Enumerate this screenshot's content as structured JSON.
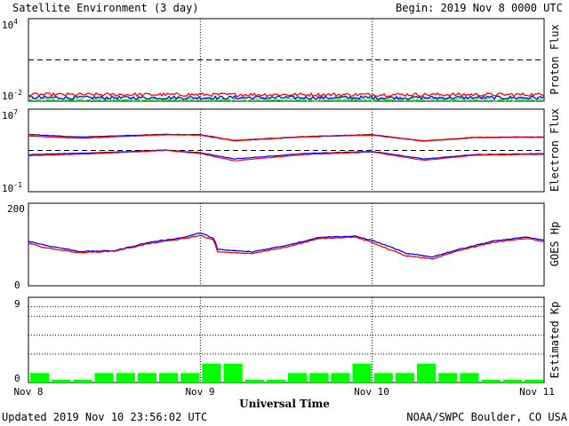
{
  "header": {
    "title": "Satellite Environment (3 day)",
    "begin": "Begin:  2019 Nov 8 0000 UTC"
  },
  "footer": {
    "updated": "Updated 2019 Nov 10 23:56:02 UTC",
    "credit": "NOAA/SWPC Boulder, CO USA"
  },
  "x_axis": {
    "label": "Universal Time",
    "ticks": [
      "Nov 8",
      "Nov 9",
      "Nov 10",
      "Nov 11"
    ]
  },
  "colors": {
    "red": "#ff0000",
    "blue": "#0000ff",
    "green": "#00ff00",
    "orange": "#ff9900",
    "black": "#000000"
  },
  "chart_data": [
    {
      "type": "line",
      "title": "",
      "ylabel": "Proton Flux",
      "yscale": "log",
      "ylim": [
        0.01,
        10000
      ],
      "yticks": [
        {
          "base": "10",
          "exp": "4"
        },
        {
          "base": "10",
          "exp": "-2"
        }
      ],
      "threshold": 10,
      "x_days": [
        0,
        3
      ],
      "series": [
        {
          "color": "red",
          "level": 0.03,
          "noise": 0.12
        },
        {
          "color": "blue",
          "level": 0.018,
          "noise": 0.12
        },
        {
          "color": "green",
          "level": 0.013,
          "noise": 0.12
        }
      ]
    },
    {
      "type": "line",
      "title": "",
      "ylabel": "Electron Flux",
      "yscale": "log",
      "ylim": [
        0.1,
        10000000
      ],
      "yticks": [
        {
          "base": "10",
          "exp": "7"
        },
        {
          "base": "10",
          "exp": "-1"
        }
      ],
      "threshold": 1000,
      "x_days": [
        0,
        3
      ],
      "series": [
        {
          "color": "orange",
          "x": [
            0,
            0.3,
            0.8,
            1.0,
            1.2,
            1.6,
            2.0,
            2.3,
            2.6,
            3.0
          ],
          "y": [
            30000,
            18000,
            35000,
            32000,
            10000,
            22000,
            32000,
            9000,
            20000,
            22000
          ]
        },
        {
          "color": "blue",
          "x": [
            0,
            0.3,
            0.8,
            1.0,
            1.2,
            1.6,
            2.0,
            2.3,
            2.6,
            3.0
          ],
          "y": [
            35000,
            20000,
            36000,
            34000,
            9000,
            22000,
            34000,
            8000,
            18000,
            20000
          ]
        },
        {
          "color": "red",
          "x": [
            0,
            0.3,
            0.8,
            1.0,
            1.2,
            1.6,
            2.0,
            2.3,
            2.6,
            3.0
          ],
          "y": [
            25000,
            15000,
            33000,
            30000,
            8500,
            20000,
            30000,
            8000,
            17000,
            19000
          ]
        },
        {
          "color": "blue",
          "x": [
            0,
            0.4,
            0.8,
            1.0,
            1.2,
            1.6,
            2.0,
            2.3,
            2.6,
            3.0
          ],
          "y": [
            400,
            600,
            1100,
            600,
            150,
            500,
            800,
            150,
            400,
            500
          ]
        },
        {
          "color": "red",
          "x": [
            0,
            0.4,
            0.8,
            1.0,
            1.2,
            1.6,
            2.0,
            2.3,
            2.6,
            3.0
          ],
          "y": [
            300,
            500,
            1000,
            500,
            100,
            400,
            700,
            110,
            350,
            420
          ]
        }
      ]
    },
    {
      "type": "line",
      "title": "",
      "ylabel": "GOES Hp",
      "ylim": [
        0,
        200
      ],
      "yticks": [
        "0",
        "200"
      ],
      "x_days": [
        0,
        3
      ],
      "series": [
        {
          "color": "blue",
          "x": [
            0,
            0.1,
            0.3,
            0.5,
            0.7,
            0.9,
            1.0,
            1.08,
            1.1,
            1.3,
            1.5,
            1.7,
            1.9,
            2.0,
            2.1,
            2.2,
            2.35,
            2.5,
            2.7,
            2.9,
            3.0
          ],
          "y": [
            108,
            98,
            83,
            85,
            105,
            117,
            128,
            115,
            88,
            82,
            98,
            118,
            120,
            110,
            95,
            78,
            70,
            88,
            108,
            118,
            110
          ]
        },
        {
          "color": "red",
          "x": [
            0,
            0.1,
            0.3,
            0.5,
            0.7,
            0.9,
            1.0,
            1.08,
            1.1,
            1.3,
            1.5,
            1.7,
            1.9,
            2.0,
            2.1,
            2.2,
            2.35,
            2.5,
            2.7,
            2.9,
            3.0
          ],
          "y": [
            103,
            92,
            80,
            84,
            102,
            114,
            122,
            110,
            82,
            78,
            94,
            115,
            118,
            105,
            88,
            72,
            65,
            85,
            105,
            115,
            106
          ]
        }
      ]
    },
    {
      "type": "bar",
      "title": "",
      "ylabel": "Estimated Kp",
      "ylim": [
        0,
        9
      ],
      "yticks": [
        "0",
        "9"
      ],
      "gridlines": [
        3,
        5,
        7,
        8
      ],
      "color": "green",
      "values": [
        1,
        0.3,
        0.3,
        1,
        1,
        1,
        1,
        1,
        2,
        2,
        0.3,
        0.3,
        1,
        1,
        1,
        2,
        1,
        1,
        2,
        1,
        1,
        0.3,
        0.3,
        0.3
      ]
    }
  ]
}
